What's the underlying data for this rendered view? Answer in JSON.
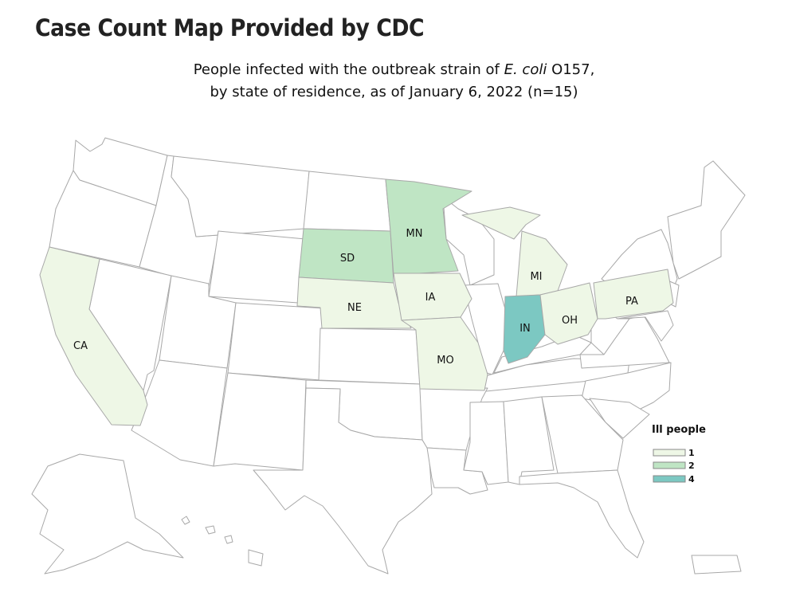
{
  "page": {
    "title": "Case Count Map Provided by CDC"
  },
  "map": {
    "subtitle_line1_pre": "People infected with the outbreak strain of ",
    "subtitle_line1_italic": "E. coli",
    "subtitle_line1_post": " O157,",
    "subtitle_line2": "by state of residence, as of January 6, 2022 (n=15)",
    "colors": {
      "none": "#ffffff",
      "1": "#eef7e6",
      "2": "#bfe5c4",
      "4": "#7cc8c2",
      "border": "#a8a8a8"
    },
    "states": [
      {
        "abbr": "CA",
        "label": "CA",
        "count": 1
      },
      {
        "abbr": "SD",
        "label": "SD",
        "count": 2
      },
      {
        "abbr": "MN",
        "label": "MN",
        "count": 2
      },
      {
        "abbr": "NE",
        "label": "NE",
        "count": 1
      },
      {
        "abbr": "IA",
        "label": "IA",
        "count": 1
      },
      {
        "abbr": "MO",
        "label": "MO",
        "count": 1
      },
      {
        "abbr": "MI",
        "label": "MI",
        "count": 1
      },
      {
        "abbr": "IN",
        "label": "IN",
        "count": 4
      },
      {
        "abbr": "OH",
        "label": "OH",
        "count": 1
      },
      {
        "abbr": "PA",
        "label": "PA",
        "count": 1
      }
    ],
    "legend": {
      "title": "Ill people",
      "items": [
        {
          "label": "1",
          "color": "#eef7e6"
        },
        {
          "label": "2",
          "color": "#bfe5c4"
        },
        {
          "label": "4",
          "color": "#7cc8c2"
        }
      ]
    }
  }
}
